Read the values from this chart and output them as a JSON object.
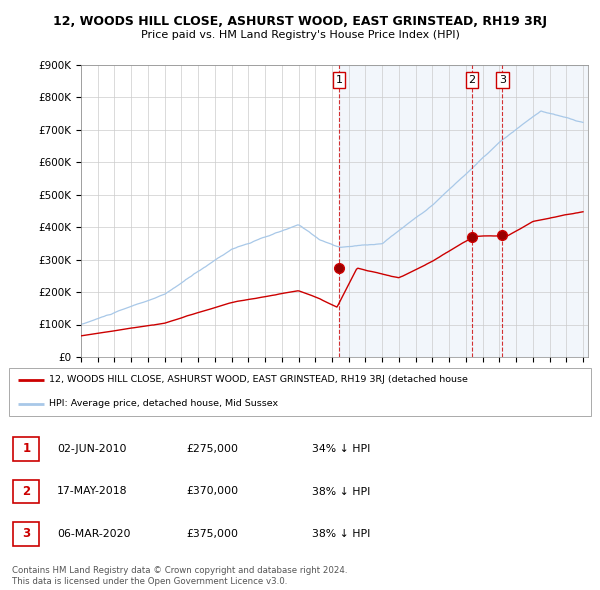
{
  "title": "12, WOODS HILL CLOSE, ASHURST WOOD, EAST GRINSTEAD, RH19 3RJ",
  "subtitle": "Price paid vs. HM Land Registry's House Price Index (HPI)",
  "ylim": [
    0,
    900000
  ],
  "yticks": [
    0,
    100000,
    200000,
    300000,
    400000,
    500000,
    600000,
    700000,
    800000,
    900000
  ],
  "ytick_labels": [
    "£0",
    "£100K",
    "£200K",
    "£300K",
    "£400K",
    "£500K",
    "£600K",
    "£700K",
    "£800K",
    "£900K"
  ],
  "hpi_color": "#a8c8e8",
  "hpi_fill_color": "#d8eaf8",
  "price_color": "#cc0000",
  "dashed_line_color": "#cc0000",
  "background_color": "#ffffff",
  "grid_color": "#cccccc",
  "sale_dates_num": [
    2010.42,
    2018.37,
    2020.18
  ],
  "sale_prices": [
    275000,
    370000,
    375000
  ],
  "sale_labels": [
    "1",
    "2",
    "3"
  ],
  "legend_label_red": "12, WOODS HILL CLOSE, ASHURST WOOD, EAST GRINSTEAD, RH19 3RJ (detached house",
  "legend_label_blue": "HPI: Average price, detached house, Mid Sussex",
  "table_data": [
    [
      "1",
      "02-JUN-2010",
      "£275,000",
      "34% ↓ HPI"
    ],
    [
      "2",
      "17-MAY-2018",
      "£370,000",
      "38% ↓ HPI"
    ],
    [
      "3",
      "06-MAR-2020",
      "£375,000",
      "38% ↓ HPI"
    ]
  ],
  "footer": "Contains HM Land Registry data © Crown copyright and database right 2024.\nThis data is licensed under the Open Government Licence v3.0.",
  "xlim_start": 1995,
  "xlim_end": 2025.3
}
